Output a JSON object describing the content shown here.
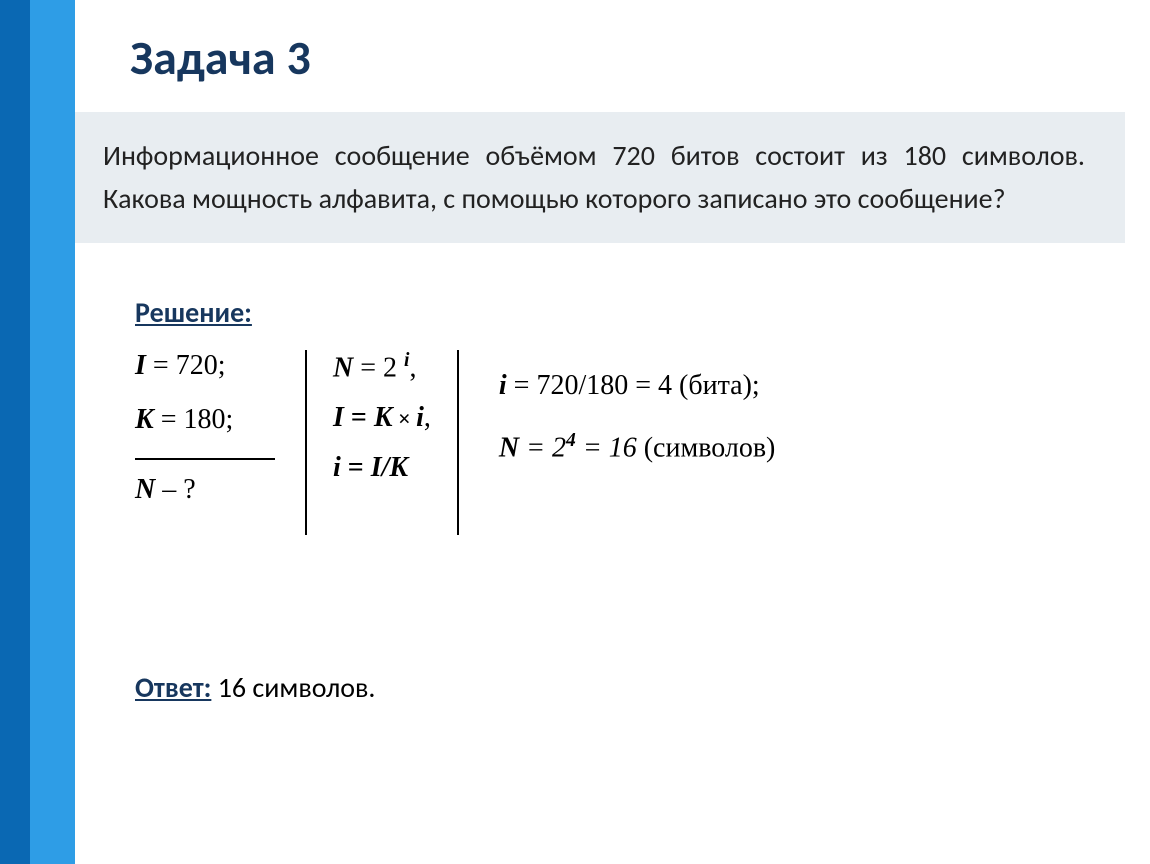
{
  "title": "Задача 3",
  "problem_text": "Информационное сообщение объёмом 720 битов состоит из 180 символов. Какова мощность алфавита, с помощью которого записано это сообщение?",
  "solution_label": "Решение:",
  "given": {
    "I_var": "I",
    "I_val": " = 720;",
    "K_var": "K",
    "K_val": " = 180;",
    "N_var": "N",
    "N_q": "  – ?"
  },
  "formulas": {
    "f1_lhs": "N",
    "f1_eq": " = 2 ",
    "f1_exp": "i",
    "f1_comma": ",",
    "f2_lhs": "I",
    "f2_eq": " = ",
    "f2_rhs_k": "K",
    "f2_times": " × ",
    "f2_rhs_i": "i",
    "f2_comma": ",",
    "f3_lhs": "i",
    "f3_eq": " = ",
    "f3_rhs": "I/K"
  },
  "calc": {
    "c1_lhs": "i",
    "c1_val": " = 720/180 = 4 (бита);",
    "c2_lhs": "N",
    "c2_eq": " = 2",
    "c2_exp": "4",
    "c2_eq2": " = 16 ",
    "c2_tail": "(символов)"
  },
  "answer_label": "Ответ:",
  "answer_text": " 16 символов.",
  "colors": {
    "stripe_dark": "#0a68b3",
    "stripe_light": "#2e9de6",
    "title_color": "#17375e",
    "problem_bg": "#e8edf1"
  }
}
